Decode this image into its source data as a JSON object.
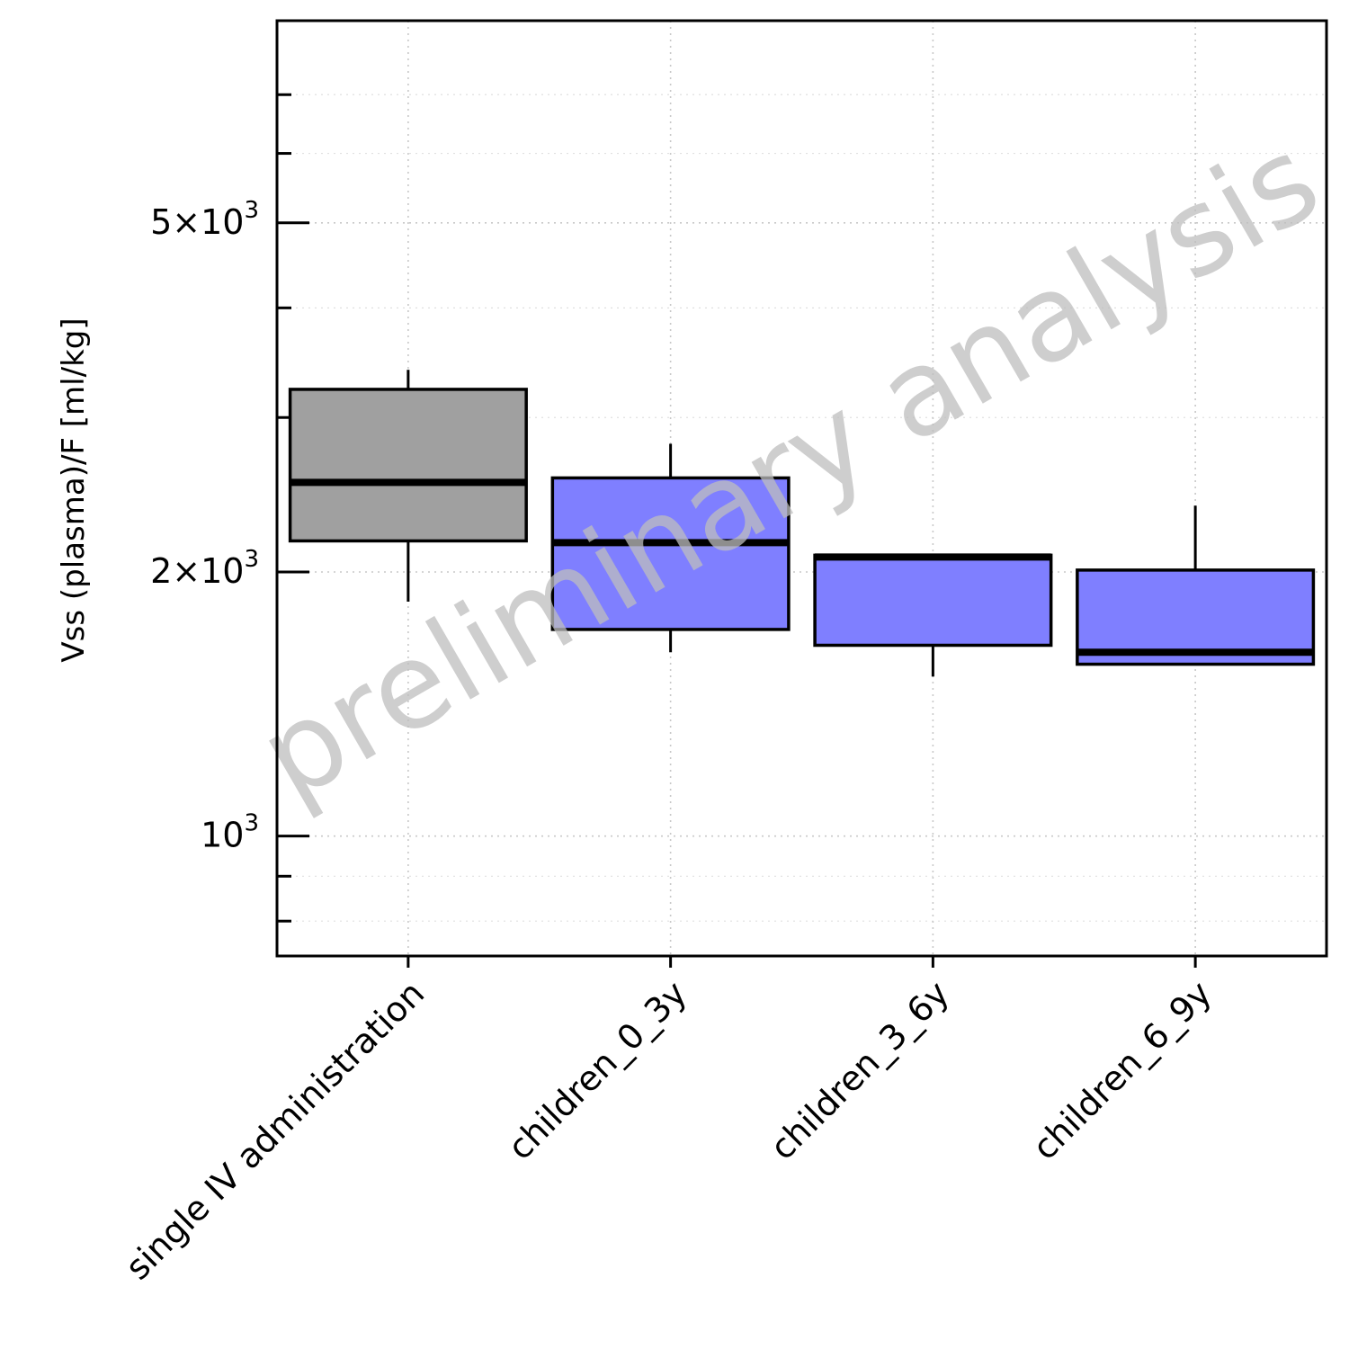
{
  "chart_data": {
    "type": "box",
    "ylabel": "Vss (plasma)/F [ml/kg]",
    "yscale": "log",
    "ylim": [
      730,
      8500
    ],
    "y_ticks": [
      {
        "value": 1000,
        "base": "10",
        "exp": "3",
        "mantissa": ""
      },
      {
        "value": 2000,
        "base": "10",
        "exp": "3",
        "mantissa": "2"
      },
      {
        "value": 5000,
        "base": "10",
        "exp": "3",
        "mantissa": "5"
      }
    ],
    "y_minor_ticks": [
      800,
      900,
      3000,
      4000,
      6000,
      7000
    ],
    "grid": true,
    "watermark": "preliminary analysis",
    "categories": [
      "single IV administration",
      "children_0_3y",
      "children_3_6y",
      "children_6_9y"
    ],
    "boxes": [
      {
        "category": "single IV administration",
        "whisker_low": 1850,
        "q1": 2170,
        "median": 2530,
        "q3": 3230,
        "whisker_high": 3400,
        "color": "#a0a0a0"
      },
      {
        "category": "children_0_3y",
        "whisker_low": 1620,
        "q1": 1720,
        "median": 2160,
        "q3": 2560,
        "whisker_high": 2800,
        "color": "#7f7fff"
      },
      {
        "category": "children_3_6y",
        "whisker_low": 1520,
        "q1": 1650,
        "median": 2080,
        "q3": 2090,
        "whisker_high": 2090,
        "color": "#7f7fff"
      },
      {
        "category": "children_6_9y",
        "whisker_low": 1570,
        "q1": 1570,
        "median": 1620,
        "q3": 2010,
        "whisker_high": 2380,
        "color": "#7f7fff"
      }
    ]
  }
}
